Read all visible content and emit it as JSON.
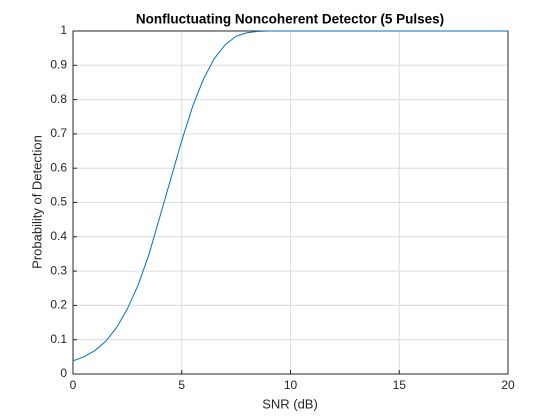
{
  "chart_data": {
    "type": "line",
    "title": "Nonfluctuating Noncoherent Detector (5 Pulses)",
    "x_label": "SNR (dB)",
    "y_label": "Probability of Detection",
    "x": [
      0,
      0.5,
      1,
      1.5,
      2,
      2.5,
      3,
      3.5,
      4,
      4.5,
      5,
      5.5,
      6,
      6.5,
      7,
      7.5,
      8,
      8.5,
      9,
      10,
      11,
      12,
      13,
      14,
      15,
      16,
      17,
      18,
      19,
      20
    ],
    "series": [
      {
        "color": "#0072bd",
        "values": [
          0.038,
          0.05,
          0.068,
          0.095,
          0.135,
          0.19,
          0.26,
          0.35,
          0.46,
          0.57,
          0.68,
          0.78,
          0.86,
          0.92,
          0.96,
          0.985,
          0.995,
          0.999,
          1,
          1,
          1,
          1,
          1,
          1,
          1,
          1,
          1,
          1,
          1,
          1
        ]
      }
    ],
    "xlim": [
      0,
      20
    ],
    "ylim": [
      0,
      1
    ],
    "xticks": [
      0,
      5,
      10,
      15,
      20
    ],
    "yticks": [
      0,
      0.1,
      0.2,
      0.3,
      0.4,
      0.5,
      0.6,
      0.7,
      0.8,
      0.9,
      1
    ],
    "grid": true
  }
}
